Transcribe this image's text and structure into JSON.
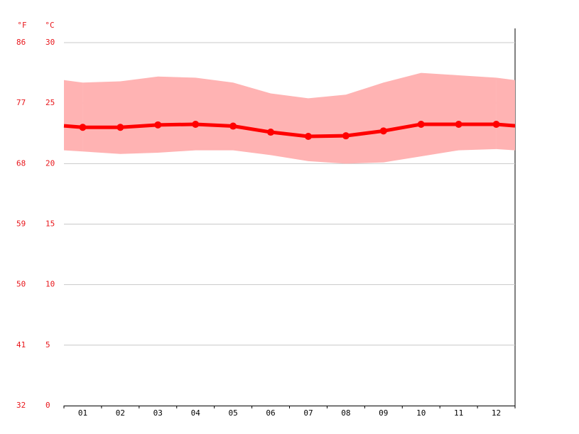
{
  "chart_data": {
    "type": "line",
    "y_unit_label": "°C",
    "y2_unit_label": "°F",
    "categories": [
      "01",
      "02",
      "03",
      "04",
      "05",
      "06",
      "07",
      "08",
      "09",
      "10",
      "11",
      "12"
    ],
    "values": [
      23.0,
      23.0,
      23.2,
      23.25,
      23.1,
      22.6,
      22.25,
      22.3,
      22.7,
      23.25,
      23.25,
      23.25
    ],
    "color": "#ff0000",
    "range_high": [
      26.7,
      26.8,
      27.2,
      27.1,
      26.7,
      25.8,
      25.4,
      25.7,
      26.7,
      27.5,
      27.3,
      27.1
    ],
    "range_low": [
      21.0,
      20.8,
      20.9,
      21.1,
      21.1,
      20.7,
      20.2,
      20.0,
      20.1,
      20.6,
      21.1,
      21.2
    ],
    "range_color": "#ffb3b3",
    "ylim": [
      0,
      30
    ],
    "yticks": [
      0,
      5,
      10,
      15,
      20,
      25,
      30
    ],
    "y2lim": [
      32,
      86
    ],
    "y2ticks": [
      32,
      41,
      50,
      59,
      68,
      77,
      86
    ],
    "grid": true
  }
}
